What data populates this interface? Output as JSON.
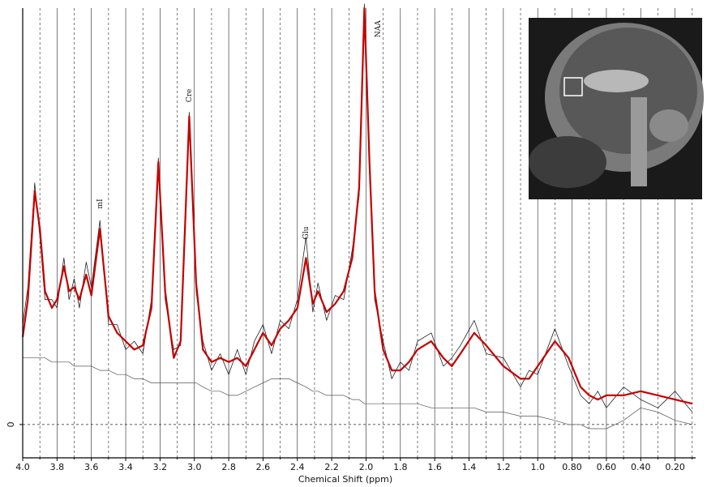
{
  "chart_data": {
    "type": "line",
    "x_label": "Chemical Shift (ppm)",
    "x": [
      4.0,
      3.97,
      3.93,
      3.9,
      3.87,
      3.83,
      3.8,
      3.76,
      3.73,
      3.7,
      3.67,
      3.63,
      3.6,
      3.55,
      3.5,
      3.45,
      3.4,
      3.35,
      3.3,
      3.25,
      3.21,
      3.17,
      3.12,
      3.08,
      3.03,
      2.99,
      2.95,
      2.9,
      2.85,
      2.8,
      2.75,
      2.7,
      2.65,
      2.6,
      2.55,
      2.5,
      2.45,
      2.4,
      2.35,
      2.31,
      2.28,
      2.23,
      2.18,
      2.13,
      2.08,
      2.04,
      2.01,
      1.98,
      1.95,
      1.9,
      1.85,
      1.8,
      1.75,
      1.7,
      1.62,
      1.55,
      1.5,
      1.45,
      1.37,
      1.3,
      1.2,
      1.1,
      1.05,
      1.0,
      0.9,
      0.82,
      0.75,
      0.7,
      0.65,
      0.6,
      0.5,
      0.4,
      0.3,
      0.2,
      0.1
    ],
    "series": [
      {
        "color": "#222222",
        "width": 0.8,
        "values": [
          0.24,
          0.33,
          0.58,
          0.45,
          0.3,
          0.3,
          0.28,
          0.4,
          0.3,
          0.35,
          0.28,
          0.39,
          0.33,
          0.49,
          0.24,
          0.24,
          0.18,
          0.2,
          0.17,
          0.3,
          0.64,
          0.3,
          0.18,
          0.19,
          0.75,
          0.32,
          0.2,
          0.13,
          0.17,
          0.12,
          0.18,
          0.12,
          0.2,
          0.24,
          0.17,
          0.25,
          0.23,
          0.3,
          0.45,
          0.27,
          0.34,
          0.25,
          0.31,
          0.3,
          0.42,
          0.55,
          1.01,
          0.61,
          0.3,
          0.2,
          0.11,
          0.15,
          0.13,
          0.2,
          0.22,
          0.14,
          0.16,
          0.19,
          0.25,
          0.17,
          0.16,
          0.09,
          0.13,
          0.12,
          0.23,
          0.14,
          0.07,
          0.05,
          0.08,
          0.04,
          0.09,
          0.06,
          0.04,
          0.08,
          0.03
        ]
      },
      {
        "color": "#c40000",
        "width": 2.2,
        "values": [
          0.21,
          0.3,
          0.56,
          0.47,
          0.32,
          0.28,
          0.3,
          0.38,
          0.32,
          0.33,
          0.3,
          0.36,
          0.31,
          0.47,
          0.26,
          0.22,
          0.2,
          0.18,
          0.19,
          0.28,
          0.63,
          0.32,
          0.16,
          0.2,
          0.74,
          0.34,
          0.18,
          0.15,
          0.16,
          0.15,
          0.16,
          0.14,
          0.18,
          0.22,
          0.19,
          0.23,
          0.25,
          0.28,
          0.4,
          0.29,
          0.32,
          0.27,
          0.29,
          0.32,
          0.4,
          0.57,
          1.0,
          0.63,
          0.32,
          0.18,
          0.13,
          0.13,
          0.15,
          0.18,
          0.2,
          0.16,
          0.14,
          0.17,
          0.22,
          0.19,
          0.14,
          0.11,
          0.11,
          0.14,
          0.2,
          0.16,
          0.09,
          0.07,
          0.06,
          0.07,
          0.07,
          0.08,
          0.07,
          0.06,
          0.05
        ]
      },
      {
        "color": "#555555",
        "width": 0.7,
        "values": [
          0.16,
          0.16,
          0.16,
          0.16,
          0.16,
          0.15,
          0.15,
          0.15,
          0.15,
          0.14,
          0.14,
          0.14,
          0.14,
          0.13,
          0.13,
          0.12,
          0.12,
          0.11,
          0.11,
          0.1,
          0.1,
          0.1,
          0.1,
          0.1,
          0.1,
          0.1,
          0.09,
          0.08,
          0.08,
          0.07,
          0.07,
          0.08,
          0.09,
          0.1,
          0.11,
          0.11,
          0.11,
          0.1,
          0.09,
          0.08,
          0.08,
          0.07,
          0.07,
          0.07,
          0.06,
          0.06,
          0.05,
          0.05,
          0.05,
          0.05,
          0.05,
          0.05,
          0.05,
          0.05,
          0.04,
          0.04,
          0.04,
          0.04,
          0.04,
          0.03,
          0.03,
          0.02,
          0.02,
          0.02,
          0.01,
          0.0,
          0.0,
          -0.01,
          -0.01,
          -0.01,
          0.01,
          0.04,
          0.03,
          0.01,
          0.0
        ]
      }
    ],
    "xlim": [
      4.0,
      0.08
    ],
    "ylim": [
      -0.08,
      1.0
    ],
    "xticks": [
      {
        "value": 4.0,
        "label": "4.0"
      },
      3.8,
      3.6,
      3.4,
      3.2,
      {
        "value": 3.0,
        "label": "3.0"
      },
      2.8,
      2.6,
      2.4,
      2.2,
      {
        "value": 2.0,
        "label": "2.0"
      },
      1.8,
      1.6,
      1.4,
      1.2,
      {
        "value": 1.0,
        "label": "1.0"
      },
      {
        "value": 0.8,
        "label": "0.80"
      },
      {
        "value": 0.6,
        "label": "0.60"
      },
      {
        "value": 0.4,
        "label": "0.40"
      },
      {
        "value": 0.2,
        "label": "0.20"
      }
    ],
    "xminorticks": [
      3.9,
      3.7,
      3.5,
      3.3,
      3.1,
      2.9,
      2.7,
      2.5,
      2.3,
      2.1,
      1.9,
      1.7,
      1.5,
      1.3,
      1.1,
      0.9,
      0.7,
      0.5,
      0.3,
      0.1
    ],
    "yticks": [
      0
    ],
    "grid": true,
    "annotations": [
      {
        "text": "mI",
        "x": 3.55,
        "y": 0.53
      },
      {
        "text": "Cre",
        "x": 3.03,
        "y": 0.79
      },
      {
        "text": "Glu",
        "x": 2.35,
        "y": 0.46
      },
      {
        "text": "NAA",
        "x": 1.93,
        "y": 0.95
      }
    ]
  }
}
